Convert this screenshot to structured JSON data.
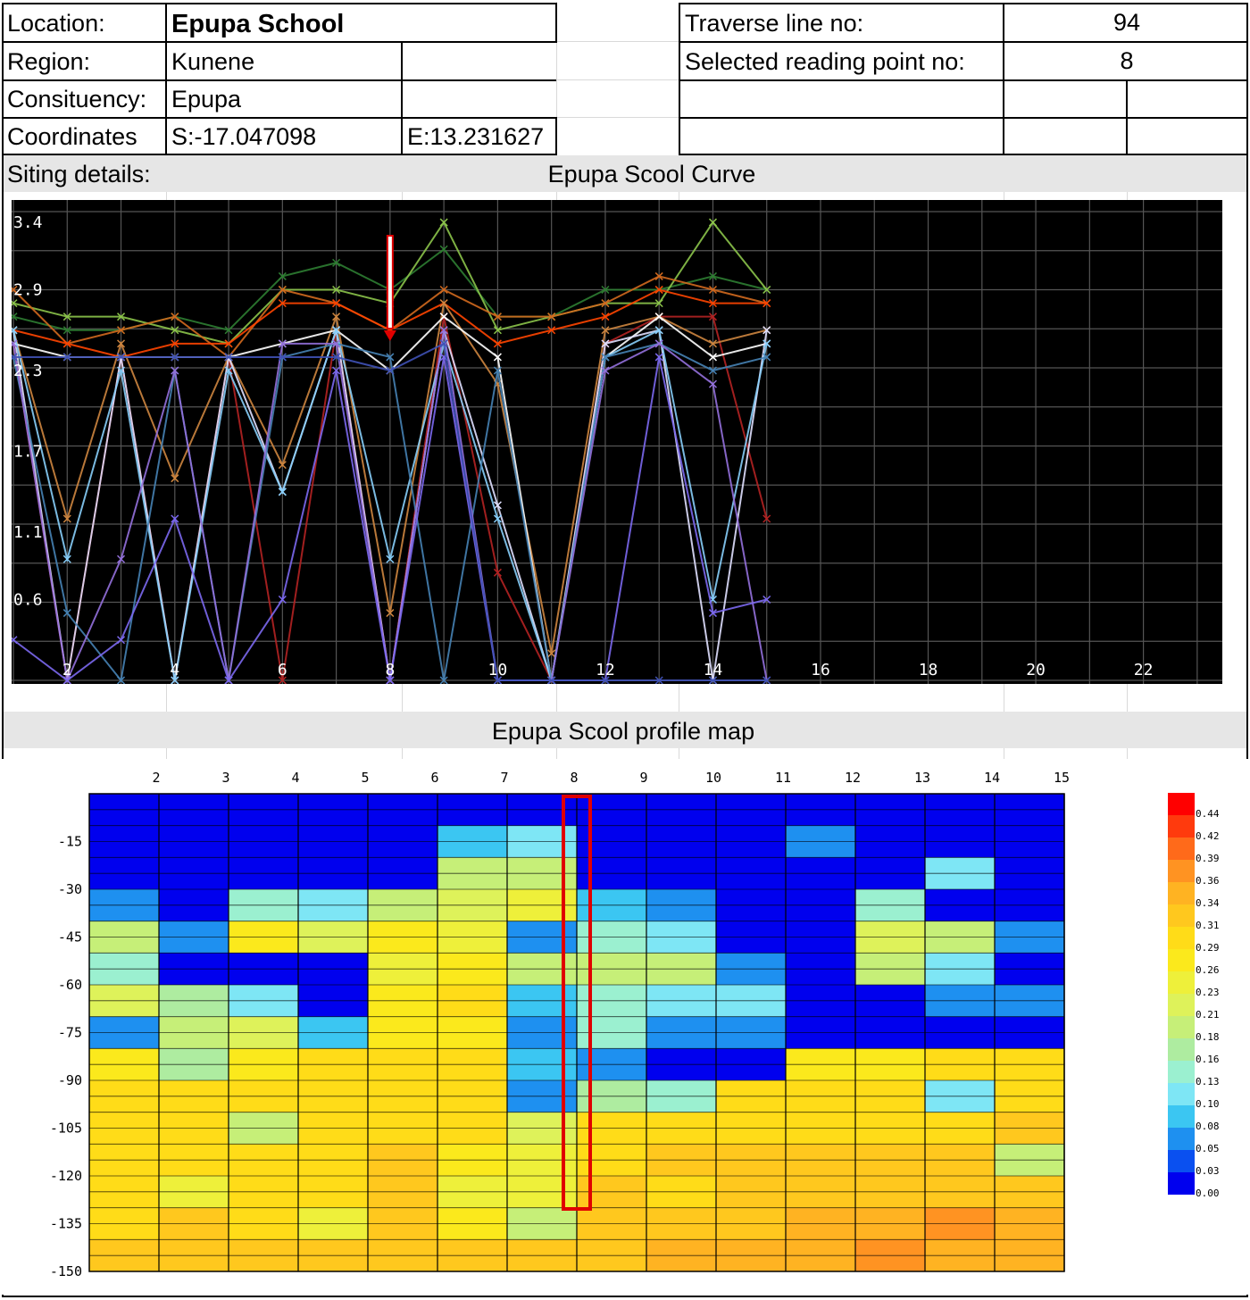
{
  "info": {
    "location_label": "Location:",
    "location_value": "Epupa School",
    "region_label": "Region:",
    "region_value": "Kunene",
    "constituency_label": "Consituency:",
    "constituency_value": "Epupa",
    "coordinates_label": "Coordinates",
    "coord_s": "S:-17.047098",
    "coord_e": "E:13.231627",
    "traverse_label": "Traverse line no:",
    "traverse_value": "94",
    "reading_label": "Selected reading point no:",
    "reading_value": "8",
    "siting_label": "Siting details:"
  },
  "colors": {
    "plot_bg": "#000000",
    "grid": "#555555",
    "map_blue": "#0a14f0",
    "map_yellow": "#f5e21a",
    "map_orange": "#f7b52a",
    "marker_red": "#e00000"
  },
  "chart_data": [
    {
      "type": "line",
      "title": "Epupa Scool  Curve",
      "x_ticks": [
        2,
        4,
        6,
        8,
        10,
        12,
        14,
        16,
        18,
        20,
        22
      ],
      "y_ticks": [
        0.6,
        1.1,
        1.7,
        2.3,
        2.9,
        3.4
      ],
      "xlim": [
        1,
        23.5
      ],
      "ylim": [
        0,
        3.5
      ],
      "selected_point": 8,
      "series": [
        {
          "color": "#2e7d32",
          "x": [
            1,
            2,
            3,
            4,
            5,
            6,
            7,
            8,
            9,
            10,
            11,
            12,
            13,
            14,
            15
          ],
          "values": [
            2.7,
            2.6,
            2.6,
            2.7,
            2.6,
            3.0,
            3.1,
            2.9,
            3.2,
            2.7,
            2.7,
            2.9,
            2.9,
            3.0,
            2.9
          ]
        },
        {
          "color": "#8bc34a",
          "x": [
            1,
            2,
            3,
            4,
            5,
            6,
            7,
            8,
            9,
            10,
            11,
            12,
            13,
            14,
            15
          ],
          "values": [
            2.8,
            2.7,
            2.7,
            2.6,
            2.5,
            2.9,
            2.9,
            2.8,
            3.4,
            2.6,
            2.7,
            2.8,
            2.8,
            3.4,
            2.9
          ]
        },
        {
          "color": "#d2691e",
          "x": [
            1,
            2,
            3,
            4,
            5,
            6,
            7,
            8,
            9,
            10,
            11,
            12,
            13,
            14,
            15
          ],
          "values": [
            2.9,
            2.5,
            2.6,
            2.7,
            2.4,
            2.9,
            2.8,
            2.6,
            2.9,
            2.7,
            2.7,
            2.8,
            3.0,
            2.9,
            2.8
          ]
        },
        {
          "color": "#ff4500",
          "x": [
            1,
            2,
            3,
            4,
            5,
            6,
            7,
            8,
            9,
            10,
            11,
            12,
            13,
            14,
            15
          ],
          "values": [
            2.6,
            2.5,
            2.4,
            2.5,
            2.5,
            2.8,
            2.8,
            2.6,
            2.8,
            2.5,
            2.6,
            2.7,
            2.9,
            2.8,
            2.8
          ]
        },
        {
          "color": "#b22222",
          "x": [
            1,
            2,
            3,
            4,
            5,
            6,
            7,
            8,
            9,
            10,
            11,
            12,
            13,
            14,
            15
          ],
          "values": [
            2.5,
            0.0,
            2.4,
            0.0,
            2.4,
            0.0,
            2.6,
            0.0,
            2.7,
            0.8,
            0.0,
            2.5,
            2.7,
            2.7,
            1.2
          ]
        },
        {
          "color": "#cd853f",
          "x": [
            1,
            2,
            3,
            4,
            5,
            6,
            7,
            8,
            9,
            10,
            11,
            12,
            13,
            14,
            15
          ],
          "values": [
            2.6,
            1.2,
            2.5,
            1.5,
            2.4,
            1.6,
            2.7,
            0.5,
            2.8,
            2.2,
            0.2,
            2.6,
            2.7,
            2.5,
            2.6
          ]
        },
        {
          "color": "#ffffff",
          "x": [
            1,
            2,
            3,
            4,
            5,
            6,
            7,
            8,
            9,
            10,
            11,
            12,
            13,
            14,
            15
          ],
          "values": [
            2.5,
            2.4,
            2.4,
            2.4,
            2.4,
            2.5,
            2.6,
            2.3,
            2.7,
            2.4,
            0.0,
            2.4,
            2.7,
            2.4,
            2.5
          ]
        },
        {
          "color": "#e0e0ff",
          "x": [
            1,
            2,
            3,
            4,
            5,
            6,
            7,
            8,
            9,
            10,
            11,
            12,
            13,
            14,
            15
          ],
          "values": [
            2.6,
            0.0,
            2.4,
            0.0,
            2.4,
            1.4,
            2.6,
            0.0,
            2.6,
            1.3,
            0.0,
            2.5,
            2.6,
            0.0,
            2.6
          ]
        },
        {
          "color": "#87cefa",
          "x": [
            1,
            2,
            3,
            4,
            5,
            6,
            7,
            8,
            9,
            10,
            11,
            12,
            13,
            14,
            15
          ],
          "values": [
            2.6,
            0.9,
            2.3,
            0.0,
            2.3,
            1.4,
            2.6,
            0.9,
            2.5,
            1.2,
            0.0,
            2.4,
            2.6,
            0.6,
            2.5
          ]
        },
        {
          "color": "#4682b4",
          "x": [
            1,
            2,
            3,
            4,
            5,
            6,
            7,
            8,
            9,
            10,
            11,
            12,
            13,
            14,
            15
          ],
          "values": [
            2.4,
            0.5,
            0.0,
            2.3,
            0.0,
            2.4,
            2.5,
            2.4,
            0.0,
            2.3,
            0.0,
            2.4,
            2.5,
            2.3,
            2.4
          ]
        },
        {
          "color": "#9370db",
          "x": [
            1,
            2,
            3,
            4,
            5,
            6,
            7,
            8,
            9,
            10,
            11,
            12,
            13,
            14,
            15
          ],
          "values": [
            2.5,
            0.0,
            0.9,
            2.3,
            0.0,
            2.5,
            2.5,
            0.0,
            2.6,
            0.0,
            0.0,
            2.3,
            2.5,
            2.2,
            0.0
          ]
        },
        {
          "color": "#7b68ee",
          "x": [
            1,
            2,
            3,
            4,
            5,
            6,
            7,
            8,
            9,
            10,
            11,
            12,
            13,
            14,
            15
          ],
          "values": [
            0.3,
            0.0,
            0.3,
            1.2,
            0.0,
            0.6,
            2.3,
            0.0,
            2.4,
            0.0,
            0.0,
            0.0,
            2.4,
            0.5,
            0.6
          ]
        },
        {
          "color": "#3f51b5",
          "x": [
            1,
            2,
            3,
            4,
            5,
            6,
            7,
            8,
            9,
            10,
            11,
            12,
            13,
            14,
            15
          ],
          "values": [
            2.4,
            2.4,
            2.4,
            2.4,
            2.4,
            2.4,
            2.4,
            2.3,
            2.5,
            0.0,
            0.0,
            0.0,
            0.0,
            0.0,
            0.0
          ]
        }
      ]
    },
    {
      "type": "heatmap",
      "title": "Epupa Scool  profile map",
      "x_ticks": [
        2,
        3,
        4,
        5,
        6,
        7,
        8,
        9,
        10,
        11,
        12,
        13,
        14,
        15
      ],
      "y_ticks": [
        -15,
        -30,
        -45,
        -60,
        -75,
        -90,
        -105,
        -120,
        -135,
        -150
      ],
      "ylim": [
        -150,
        0
      ],
      "selected_point": 8,
      "colorbar_labels": [
        "0.44",
        "0.42",
        "0.39",
        "0.36",
        "0.34",
        "0.31",
        "0.29",
        "0.26",
        "0.23",
        "0.21",
        "0.18",
        "0.16",
        "0.13",
        "0.10",
        "0.08",
        "0.05",
        "0.03",
        "0.00"
      ],
      "colorbar_colors": [
        "#ff0000",
        "#ff3a0d",
        "#ff6a1a",
        "#ff9322",
        "#ffb322",
        "#ffc81e",
        "#ffdc18",
        "#fbe91c",
        "#eef03a",
        "#def25a",
        "#c6ef78",
        "#aeeca0",
        "#9bf0d0",
        "#7ee6f5",
        "#3bc6f2",
        "#1e90f0",
        "#0a50f0",
        "#0000ee"
      ],
      "grid": [
        [
          0.0,
          0.0,
          0.0,
          0.0,
          0.0,
          0.0,
          0.0,
          0.0,
          0.0,
          0.0,
          0.0,
          0.0,
          0.0,
          0.0
        ],
        [
          0.0,
          0.0,
          0.0,
          0.0,
          0.0,
          0.08,
          0.1,
          0.0,
          0.0,
          0.0,
          0.05,
          0.0,
          0.0,
          0.0
        ],
        [
          0.0,
          0.0,
          0.0,
          0.0,
          0.0,
          0.18,
          0.2,
          0.0,
          0.0,
          0.0,
          0.0,
          0.0,
          0.1,
          0.0
        ],
        [
          0.05,
          0.0,
          0.15,
          0.1,
          0.18,
          0.22,
          0.24,
          0.08,
          0.05,
          0.0,
          0.0,
          0.15,
          0.0,
          0.0
        ],
        [
          0.18,
          0.05,
          0.26,
          0.22,
          0.26,
          0.25,
          0.05,
          0.15,
          0.12,
          0.0,
          0.0,
          0.22,
          0.18,
          0.05
        ],
        [
          0.15,
          0.0,
          0.0,
          0.0,
          0.25,
          0.28,
          0.2,
          0.2,
          0.18,
          0.05,
          0.0,
          0.2,
          0.1,
          0.0
        ],
        [
          0.22,
          0.16,
          0.1,
          0.0,
          0.28,
          0.29,
          0.08,
          0.15,
          0.12,
          0.1,
          0.0,
          0.0,
          0.05,
          0.05
        ],
        [
          0.05,
          0.2,
          0.22,
          0.08,
          0.27,
          0.28,
          0.05,
          0.15,
          0.05,
          0.05,
          0.0,
          0.0,
          0.0,
          0.0
        ],
        [
          0.26,
          0.16,
          0.28,
          0.29,
          0.3,
          0.29,
          0.08,
          0.05,
          0.0,
          0.0,
          0.26,
          0.28,
          0.29,
          0.29
        ],
        [
          0.29,
          0.29,
          0.29,
          0.29,
          0.3,
          0.29,
          0.05,
          0.16,
          0.15,
          0.29,
          0.29,
          0.29,
          0.1,
          0.3
        ],
        [
          0.3,
          0.29,
          0.18,
          0.29,
          0.3,
          0.29,
          0.22,
          0.29,
          0.3,
          0.3,
          0.3,
          0.29,
          0.29,
          0.31
        ],
        [
          0.3,
          0.3,
          0.29,
          0.3,
          0.31,
          0.27,
          0.25,
          0.3,
          0.31,
          0.31,
          0.32,
          0.31,
          0.31,
          0.2
        ],
        [
          0.29,
          0.24,
          0.29,
          0.29,
          0.31,
          0.25,
          0.24,
          0.31,
          0.3,
          0.32,
          0.33,
          0.32,
          0.33,
          0.33
        ],
        [
          0.3,
          0.31,
          0.3,
          0.24,
          0.31,
          0.27,
          0.2,
          0.31,
          0.32,
          0.32,
          0.34,
          0.35,
          0.38,
          0.34
        ],
        [
          0.32,
          0.31,
          0.31,
          0.32,
          0.33,
          0.32,
          0.32,
          0.33,
          0.34,
          0.34,
          0.35,
          0.36,
          0.35,
          0.35
        ]
      ]
    }
  ]
}
